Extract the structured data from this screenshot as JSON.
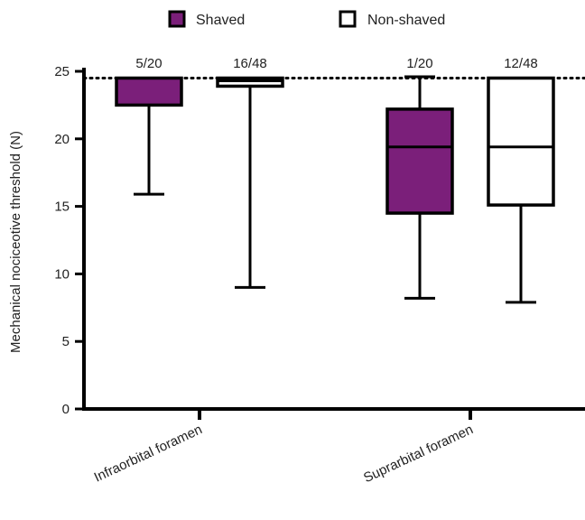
{
  "chart_data": {
    "type": "boxplot",
    "title": "",
    "xlabel": "",
    "ylabel": "Mechanical nociceotive threshold (N)",
    "ylim": [
      0,
      25
    ],
    "yticks": [
      "0",
      "5",
      "10",
      "15",
      "20",
      "25"
    ],
    "categories": [
      "Infraorbital foramen",
      "Suprarbital foramen"
    ],
    "reference_line": {
      "y": 24.5,
      "style": "dotted"
    },
    "legend": {
      "position": "top-center"
    },
    "series": [
      {
        "name": "Shaved",
        "color": "#7b1f7a",
        "boxes": [
          {
            "category": "Infraorbital foramen",
            "min": 15.9,
            "q1": 22.5,
            "median": 24.5,
            "q3": 24.5,
            "max": 24.5,
            "count_label": "5/20"
          },
          {
            "category": "Suprarbital foramen",
            "min": 8.2,
            "q1": 14.5,
            "median": 19.4,
            "q3": 22.2,
            "max": 24.6,
            "count_label": "1/20"
          }
        ]
      },
      {
        "name": "Non-shaved",
        "color": "#ffffff",
        "boxes": [
          {
            "category": "Infraorbital foramen",
            "min": 9.0,
            "q1": 23.9,
            "median": 24.3,
            "q3": 24.5,
            "max": 24.5,
            "count_label": "16/48"
          },
          {
            "category": "Suprarbital foramen",
            "min": 7.9,
            "q1": 15.1,
            "median": 19.4,
            "q3": 24.5,
            "max": 24.5,
            "count_label": "12/48"
          }
        ]
      }
    ]
  }
}
